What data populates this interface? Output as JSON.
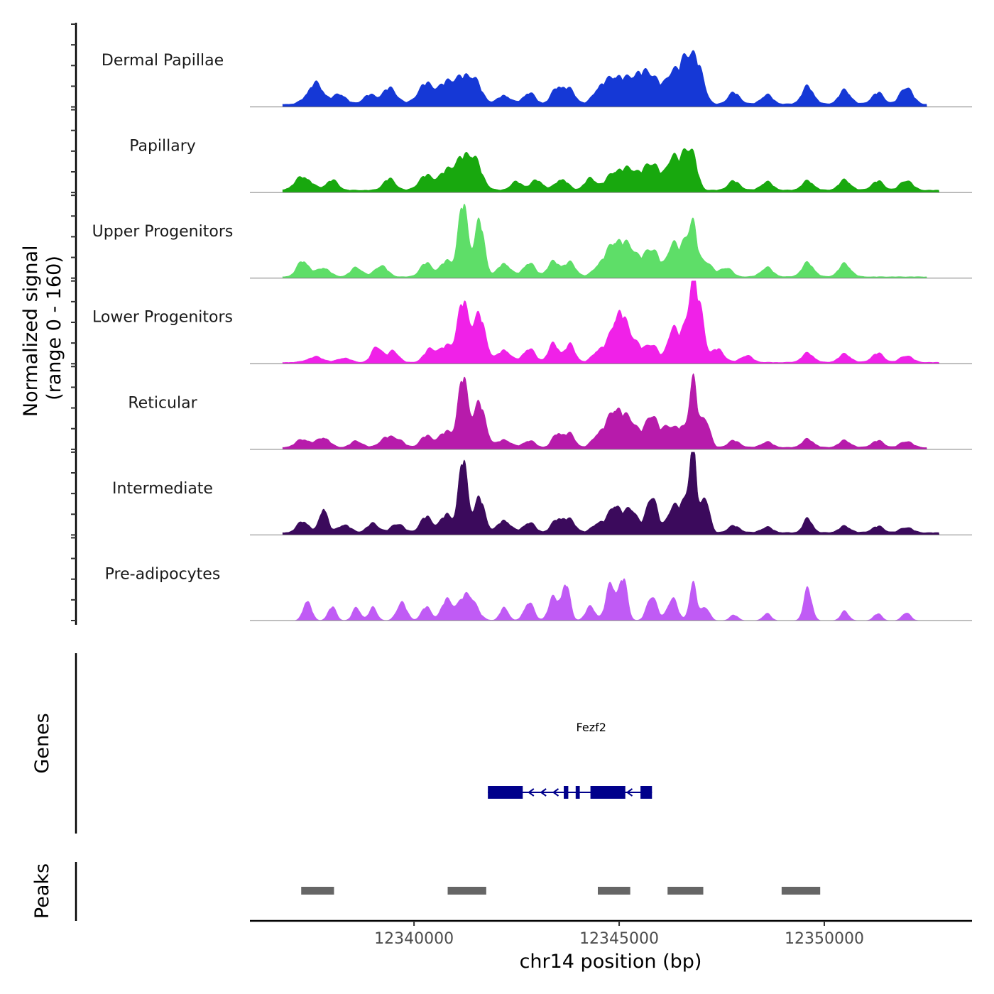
{
  "chart_data": {
    "type": "area",
    "title": "",
    "xlabel": "chr14 position (bp)",
    "ylabel": "Normalized signal\n(range 0 - 160)",
    "ylim": [
      0,
      160
    ],
    "xlim": [
      12336000,
      12353600
    ],
    "x_ticks": [
      12340000,
      12345000,
      12350000
    ],
    "x_tick_labels": [
      "12340000",
      "12345000",
      "12350000"
    ],
    "panels": {
      "genes_label": "Genes",
      "peaks_label": "Peaks"
    },
    "series": [
      {
        "name": "Dermal Papillae",
        "color": "#1538d6",
        "base": 6,
        "scale": 1.0,
        "start": 12336800,
        "end": 12352500,
        "peaks": [
          [
            12337600,
            45,
            200
          ],
          [
            12338200,
            22,
            150
          ],
          [
            12338900,
            20,
            150
          ],
          [
            12339400,
            35,
            180
          ],
          [
            12340300,
            45,
            200
          ],
          [
            12340800,
            40,
            180
          ],
          [
            12341200,
            50,
            220
          ],
          [
            12341500,
            35,
            180
          ],
          [
            12342200,
            20,
            150
          ],
          [
            12342800,
            25,
            150
          ],
          [
            12343500,
            35,
            150
          ],
          [
            12343800,
            28,
            150
          ],
          [
            12344500,
            28,
            150
          ],
          [
            12344900,
            60,
            220
          ],
          [
            12345400,
            55,
            200
          ],
          [
            12345800,
            60,
            200
          ],
          [
            12346300,
            70,
            150
          ],
          [
            12346600,
            80,
            120
          ],
          [
            12346800,
            75,
            120
          ],
          [
            12347000,
            55,
            120
          ],
          [
            12347800,
            25,
            150
          ],
          [
            12348600,
            20,
            150
          ],
          [
            12349600,
            38,
            150
          ],
          [
            12350500,
            30,
            150
          ],
          [
            12351300,
            25,
            150
          ],
          [
            12352000,
            38,
            150
          ]
        ]
      },
      {
        "name": "Papillary",
        "color": "#18a80e",
        "base": 5,
        "scale": 1.0,
        "start": 12336800,
        "end": 12352800,
        "peaks": [
          [
            12337300,
            30,
            200
          ],
          [
            12338000,
            22,
            150
          ],
          [
            12339400,
            25,
            150
          ],
          [
            12340300,
            32,
            180
          ],
          [
            12340800,
            38,
            180
          ],
          [
            12341200,
            60,
            200
          ],
          [
            12341500,
            50,
            180
          ],
          [
            12342500,
            18,
            150
          ],
          [
            12343000,
            22,
            150
          ],
          [
            12343600,
            25,
            150
          ],
          [
            12344300,
            25,
            150
          ],
          [
            12344900,
            40,
            200
          ],
          [
            12345300,
            40,
            180
          ],
          [
            12345800,
            60,
            200
          ],
          [
            12346300,
            72,
            130
          ],
          [
            12346600,
            68,
            120
          ],
          [
            12346800,
            65,
            120
          ],
          [
            12347800,
            20,
            150
          ],
          [
            12348600,
            18,
            150
          ],
          [
            12349600,
            20,
            150
          ],
          [
            12350500,
            22,
            150
          ],
          [
            12351300,
            20,
            150
          ],
          [
            12352000,
            22,
            150
          ]
        ]
      },
      {
        "name": "Upper Progenitors",
        "color": "#5ede68",
        "base": 3,
        "scale": 1.0,
        "start": 12336800,
        "end": 12352500,
        "peaks": [
          [
            12337300,
            35,
            150
          ],
          [
            12337800,
            20,
            150
          ],
          [
            12338600,
            20,
            150
          ],
          [
            12339200,
            25,
            150
          ],
          [
            12340300,
            30,
            150
          ],
          [
            12340800,
            35,
            150
          ],
          [
            12341200,
            160,
            120
          ],
          [
            12341600,
            120,
            120
          ],
          [
            12342200,
            30,
            150
          ],
          [
            12342800,
            30,
            150
          ],
          [
            12343400,
            32,
            150
          ],
          [
            12343800,
            30,
            150
          ],
          [
            12344500,
            20,
            150
          ],
          [
            12344900,
            75,
            200
          ],
          [
            12345300,
            55,
            180
          ],
          [
            12345800,
            62,
            180
          ],
          [
            12346300,
            72,
            120
          ],
          [
            12346600,
            68,
            120
          ],
          [
            12346800,
            98,
            100
          ],
          [
            12347100,
            35,
            150
          ],
          [
            12347600,
            20,
            150
          ],
          [
            12348600,
            20,
            150
          ],
          [
            12349600,
            30,
            150
          ],
          [
            12350500,
            28,
            150
          ]
        ]
      },
      {
        "name": "Lower Progenitors",
        "color": "#f021e8",
        "base": 3,
        "scale": 1.0,
        "start": 12336800,
        "end": 12352800,
        "peaks": [
          [
            12337600,
            12,
            200
          ],
          [
            12338300,
            10,
            150
          ],
          [
            12339100,
            35,
            130
          ],
          [
            12339500,
            25,
            130
          ],
          [
            12340400,
            30,
            150
          ],
          [
            12340800,
            35,
            150
          ],
          [
            12341200,
            130,
            140
          ],
          [
            12341600,
            100,
            150
          ],
          [
            12342200,
            28,
            150
          ],
          [
            12342800,
            30,
            150
          ],
          [
            12343400,
            40,
            130
          ],
          [
            12343800,
            38,
            130
          ],
          [
            12344500,
            25,
            150
          ],
          [
            12345000,
            110,
            200
          ],
          [
            12345400,
            35,
            150
          ],
          [
            12345800,
            40,
            150
          ],
          [
            12346300,
            75,
            120
          ],
          [
            12346600,
            65,
            120
          ],
          [
            12346800,
            155,
            100
          ],
          [
            12347000,
            95,
            100
          ],
          [
            12347400,
            30,
            150
          ],
          [
            12348100,
            15,
            150
          ],
          [
            12349600,
            20,
            150
          ],
          [
            12350500,
            18,
            150
          ],
          [
            12351300,
            20,
            150
          ],
          [
            12352000,
            15,
            150
          ]
        ]
      },
      {
        "name": "Reticular",
        "color": "#b71bab",
        "base": 4,
        "scale": 1.0,
        "start": 12336800,
        "end": 12352500,
        "peaks": [
          [
            12337300,
            18,
            180
          ],
          [
            12337800,
            22,
            150
          ],
          [
            12338600,
            14,
            150
          ],
          [
            12339300,
            20,
            150
          ],
          [
            12339600,
            18,
            150
          ],
          [
            12340300,
            25,
            150
          ],
          [
            12340800,
            35,
            180
          ],
          [
            12341200,
            150,
            120
          ],
          [
            12341600,
            95,
            150
          ],
          [
            12342200,
            18,
            150
          ],
          [
            12342800,
            15,
            150
          ],
          [
            12343500,
            30,
            130
          ],
          [
            12343800,
            28,
            130
          ],
          [
            12344500,
            28,
            150
          ],
          [
            12344900,
            82,
            180
          ],
          [
            12345300,
            55,
            180
          ],
          [
            12345800,
            72,
            150
          ],
          [
            12346200,
            45,
            130
          ],
          [
            12346500,
            40,
            130
          ],
          [
            12346800,
            145,
            100
          ],
          [
            12347100,
            65,
            110
          ],
          [
            12347800,
            15,
            150
          ],
          [
            12348600,
            12,
            150
          ],
          [
            12349600,
            18,
            150
          ],
          [
            12350500,
            15,
            150
          ],
          [
            12351300,
            15,
            150
          ],
          [
            12352000,
            14,
            150
          ]
        ]
      },
      {
        "name": "Intermediate",
        "color": "#3b0a5c",
        "base": 5,
        "scale": 1.0,
        "start": 12336800,
        "end": 12352800,
        "peaks": [
          [
            12337300,
            25,
            150
          ],
          [
            12337800,
            55,
            100
          ],
          [
            12338300,
            18,
            150
          ],
          [
            12339000,
            20,
            150
          ],
          [
            12339600,
            20,
            150
          ],
          [
            12340300,
            35,
            150
          ],
          [
            12340800,
            40,
            150
          ],
          [
            12341200,
            160,
            110
          ],
          [
            12341600,
            75,
            130
          ],
          [
            12342200,
            28,
            150
          ],
          [
            12342800,
            22,
            150
          ],
          [
            12343500,
            28,
            150
          ],
          [
            12343800,
            25,
            150
          ],
          [
            12344500,
            22,
            150
          ],
          [
            12344900,
            60,
            150
          ],
          [
            12345300,
            52,
            150
          ],
          [
            12345800,
            82,
            130
          ],
          [
            12346300,
            55,
            130
          ],
          [
            12346600,
            60,
            130
          ],
          [
            12346800,
            170,
            90
          ],
          [
            12347100,
            80,
            100
          ],
          [
            12347800,
            15,
            150
          ],
          [
            12348600,
            12,
            150
          ],
          [
            12349600,
            30,
            120
          ],
          [
            12350500,
            14,
            150
          ],
          [
            12351300,
            14,
            150
          ],
          [
            12352000,
            12,
            150
          ]
        ]
      },
      {
        "name": "Pre-adipocytes",
        "color": "#c05bf5",
        "base": 0,
        "scale": 1.0,
        "start": 12336800,
        "end": 12352800,
        "peaks": [
          [
            12337400,
            45,
            100
          ],
          [
            12338000,
            30,
            100
          ],
          [
            12338600,
            28,
            100
          ],
          [
            12339000,
            28,
            100
          ],
          [
            12339700,
            40,
            120
          ],
          [
            12340300,
            30,
            120
          ],
          [
            12340800,
            45,
            130
          ],
          [
            12341300,
            60,
            200
          ],
          [
            12342200,
            30,
            100
          ],
          [
            12342800,
            40,
            120
          ],
          [
            12343400,
            50,
            120
          ],
          [
            12343700,
            80,
            100
          ],
          [
            12344300,
            30,
            120
          ],
          [
            12344800,
            80,
            120
          ],
          [
            12345100,
            90,
            100
          ],
          [
            12345800,
            55,
            120
          ],
          [
            12346300,
            50,
            120
          ],
          [
            12346800,
            80,
            90
          ],
          [
            12347100,
            30,
            100
          ],
          [
            12347800,
            12,
            100
          ],
          [
            12348600,
            15,
            100
          ],
          [
            12349600,
            68,
            100
          ],
          [
            12350500,
            20,
            100
          ],
          [
            12351300,
            15,
            100
          ],
          [
            12352000,
            18,
            100
          ]
        ]
      }
    ],
    "genes": [
      {
        "name": "Fezf2",
        "strand": "-",
        "start": 12341800,
        "end": 12345800,
        "color": "#00008b",
        "exons": [
          [
            12341800,
            12342650
          ],
          [
            12343650,
            12343760
          ],
          [
            12343940,
            12344040
          ],
          [
            12344300,
            12345150
          ],
          [
            12345520,
            12345800
          ]
        ]
      }
    ],
    "peaks": [
      [
        12337250,
        12338050
      ],
      [
        12340820,
        12341760
      ],
      [
        12344480,
        12345270
      ],
      [
        12346180,
        12347050
      ],
      [
        12348960,
        12349900
      ]
    ],
    "peak_color": "#666666"
  }
}
